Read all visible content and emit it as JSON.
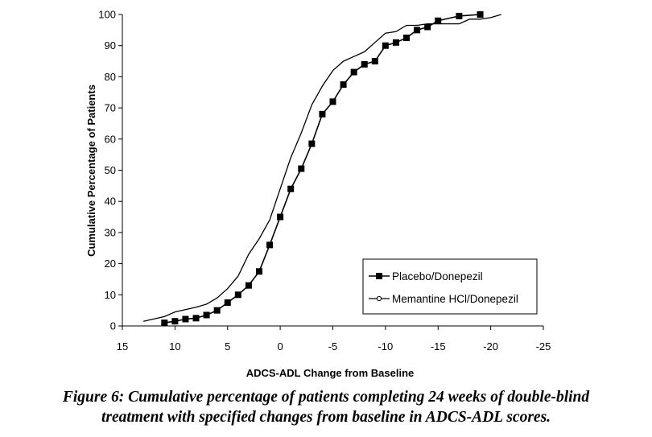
{
  "caption": {
    "line1": "Figure 6: Cumulative percentage of patients completing 24 weeks of double-blind",
    "line2": "treatment with specified changes from baseline in ADCS-ADL scores."
  },
  "chart_data": {
    "type": "line",
    "xlabel": "ADCS-ADL Change from Baseline",
    "ylabel": "Cumulative Percentage of Patients",
    "xlim": [
      15,
      -25
    ],
    "ylim": [
      0,
      100
    ],
    "x_reversed": true,
    "x_ticks": [
      15,
      10,
      5,
      0,
      -5,
      -10,
      -15,
      -20,
      -25
    ],
    "y_ticks": [
      0,
      10,
      20,
      30,
      40,
      50,
      60,
      70,
      80,
      90,
      100
    ],
    "x_tick_labels": [
      "15",
      "10",
      "5",
      "0",
      "-5",
      "-10",
      "-15",
      "-20",
      "-25"
    ],
    "y_tick_labels": [
      "0",
      "10",
      "20",
      "30",
      "40",
      "50",
      "60",
      "70",
      "80",
      "90",
      "100"
    ],
    "grid": false,
    "legend_position": "bottom-right",
    "series": [
      {
        "name": "Placebo/Donepezil",
        "marker": "square",
        "color": "#000000",
        "points": [
          [
            11,
            1
          ],
          [
            10,
            1.5
          ],
          [
            9,
            2.2
          ],
          [
            8,
            2.5
          ],
          [
            7,
            3.5
          ],
          [
            6,
            5
          ],
          [
            5,
            7.5
          ],
          [
            4,
            10
          ],
          [
            3,
            13
          ],
          [
            2,
            17.5
          ],
          [
            1,
            26
          ],
          [
            0,
            35
          ],
          [
            -1,
            44
          ],
          [
            -2,
            50.5
          ],
          [
            -3,
            58.5
          ],
          [
            -4,
            68
          ],
          [
            -5,
            72
          ],
          [
            -6,
            77.5
          ],
          [
            -7,
            81.5
          ],
          [
            -8,
            84
          ],
          [
            -9,
            85
          ],
          [
            -10,
            90
          ],
          [
            -11,
            91
          ],
          [
            -12,
            92.5
          ],
          [
            -13,
            95
          ],
          [
            -14,
            96
          ],
          [
            -15,
            98
          ],
          [
            -17,
            99.5
          ],
          [
            -19,
            100
          ]
        ]
      },
      {
        "name": "Memantine HCl/Donepezil",
        "marker": "circle",
        "color": "#000000",
        "points": [
          [
            13,
            1.5
          ],
          [
            11,
            3
          ],
          [
            10,
            4.5
          ],
          [
            8,
            6
          ],
          [
            7,
            7
          ],
          [
            6,
            9
          ],
          [
            5,
            12
          ],
          [
            4,
            16
          ],
          [
            3,
            23
          ],
          [
            2,
            28
          ],
          [
            1,
            34
          ],
          [
            0,
            44
          ],
          [
            -1,
            54
          ],
          [
            -2,
            62
          ],
          [
            -3,
            71
          ],
          [
            -4,
            77
          ],
          [
            -5,
            82
          ],
          [
            -6,
            85
          ],
          [
            -7,
            86.5
          ],
          [
            -8,
            88
          ],
          [
            -9,
            91
          ],
          [
            -10,
            94
          ],
          [
            -11,
            94.5
          ],
          [
            -12,
            96.5
          ],
          [
            -13,
            96.5
          ],
          [
            -14,
            97
          ],
          [
            -15,
            97
          ],
          [
            -16,
            97
          ],
          [
            -17,
            97
          ],
          [
            -18,
            98.5
          ],
          [
            -19,
            98.5
          ],
          [
            -20,
            99
          ],
          [
            -21,
            100
          ]
        ]
      }
    ]
  }
}
